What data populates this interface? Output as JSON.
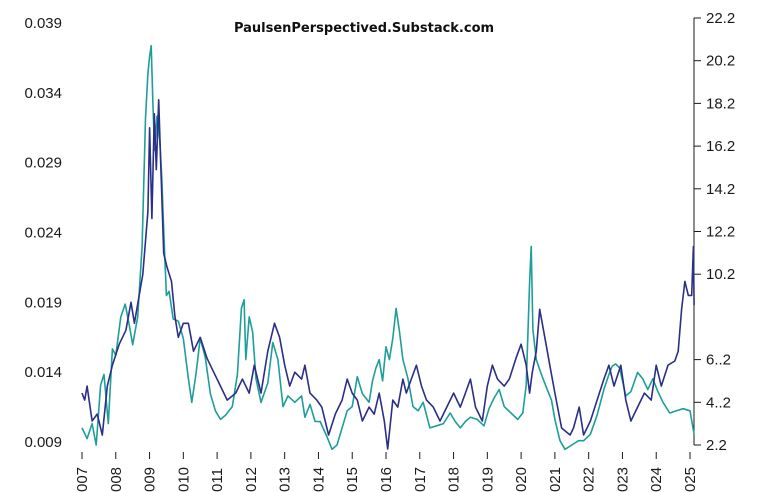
{
  "chart_data": {
    "type": "line",
    "title": "PaulsenPerspectived.Substack.com",
    "y_left": {
      "ticks": [
        0.039,
        0.034,
        0.029,
        0.024,
        0.019,
        0.014,
        0.009
      ],
      "tick_labels": [
        "0.039",
        "0.034",
        "0.029",
        "0.024",
        "0.019",
        "0.014",
        "0.009"
      ],
      "range": [
        0.009,
        0.039
      ]
    },
    "y_right": {
      "ticks": [
        22.2,
        20.2,
        18.2,
        16.2,
        14.2,
        12.2,
        10.2,
        6.2,
        4.2,
        2.2
      ],
      "tick_labels": [
        "22.2",
        "20.2",
        "18.2",
        "16.2",
        "14.2",
        "12.2",
        "10.2",
        "6..2",
        "4..2",
        "2.2"
      ],
      "range": [
        2.2,
        22.2
      ]
    },
    "x": {
      "range": [
        2007,
        2025
      ],
      "ticks": [
        2007,
        2008,
        2009,
        2010,
        2011,
        2012,
        2013,
        2014,
        2015,
        2016,
        2017,
        2018,
        2019,
        2020,
        2021,
        2022,
        2023,
        2024,
        2025
      ],
      "tick_labels": [
        "007",
        "008",
        "009",
        "010",
        "011",
        "012",
        "013",
        "014",
        "015",
        "016",
        "017",
        "018",
        "019",
        "020",
        "021",
        "022",
        "023",
        "024",
        "025"
      ]
    },
    "series": [
      {
        "axis": "left",
        "color": "#2b2f86",
        "points": [
          [
            2007.0,
            0.0125
          ],
          [
            2007.08,
            0.012
          ],
          [
            2007.15,
            0.013
          ],
          [
            2007.3,
            0.0105
          ],
          [
            2007.45,
            0.011
          ],
          [
            2007.6,
            0.0095
          ],
          [
            2007.75,
            0.013
          ],
          [
            2007.9,
            0.0145
          ],
          [
            2008.1,
            0.016
          ],
          [
            2008.3,
            0.017
          ],
          [
            2008.45,
            0.019
          ],
          [
            2008.55,
            0.0175
          ],
          [
            2008.8,
            0.021
          ],
          [
            2008.95,
            0.0255
          ],
          [
            2009.0,
            0.0315
          ],
          [
            2009.07,
            0.025
          ],
          [
            2009.14,
            0.0325
          ],
          [
            2009.2,
            0.0285
          ],
          [
            2009.27,
            0.0335
          ],
          [
            2009.33,
            0.029
          ],
          [
            2009.42,
            0.0225
          ],
          [
            2009.52,
            0.0215
          ],
          [
            2009.65,
            0.0205
          ],
          [
            2009.75,
            0.018
          ],
          [
            2009.85,
            0.0165
          ],
          [
            2010.0,
            0.0175
          ],
          [
            2010.15,
            0.0175
          ],
          [
            2010.3,
            0.0155
          ],
          [
            2010.5,
            0.0165
          ],
          [
            2010.7,
            0.015
          ],
          [
            2010.9,
            0.014
          ],
          [
            2011.1,
            0.013
          ],
          [
            2011.3,
            0.012
          ],
          [
            2011.55,
            0.0125
          ],
          [
            2011.75,
            0.0135
          ],
          [
            2011.95,
            0.0125
          ],
          [
            2012.1,
            0.0145
          ],
          [
            2012.3,
            0.0125
          ],
          [
            2012.5,
            0.0155
          ],
          [
            2012.7,
            0.0175
          ],
          [
            2012.85,
            0.0165
          ],
          [
            2013.0,
            0.0145
          ],
          [
            2013.15,
            0.013
          ],
          [
            2013.3,
            0.014
          ],
          [
            2013.5,
            0.0135
          ],
          [
            2013.6,
            0.0145
          ],
          [
            2013.75,
            0.0125
          ],
          [
            2013.95,
            0.012
          ],
          [
            2014.1,
            0.0115
          ],
          [
            2014.3,
            0.0095
          ],
          [
            2014.5,
            0.011
          ],
          [
            2014.7,
            0.012
          ],
          [
            2014.85,
            0.0135
          ],
          [
            2015.0,
            0.0125
          ],
          [
            2015.15,
            0.012
          ],
          [
            2015.3,
            0.0105
          ],
          [
            2015.5,
            0.0115
          ],
          [
            2015.65,
            0.011
          ],
          [
            2015.8,
            0.0125
          ],
          [
            2015.95,
            0.0105
          ],
          [
            2016.05,
            0.0085
          ],
          [
            2016.2,
            0.012
          ],
          [
            2016.35,
            0.0115
          ],
          [
            2016.5,
            0.0135
          ],
          [
            2016.6,
            0.0125
          ],
          [
            2016.75,
            0.0135
          ],
          [
            2016.9,
            0.0145
          ],
          [
            2017.05,
            0.013
          ],
          [
            2017.2,
            0.012
          ],
          [
            2017.4,
            0.0115
          ],
          [
            2017.6,
            0.0105
          ],
          [
            2017.8,
            0.0115
          ],
          [
            2018.0,
            0.0125
          ],
          [
            2018.2,
            0.0115
          ],
          [
            2018.35,
            0.0125
          ],
          [
            2018.5,
            0.0135
          ],
          [
            2018.65,
            0.0115
          ],
          [
            2018.85,
            0.0105
          ],
          [
            2019.0,
            0.013
          ],
          [
            2019.15,
            0.0145
          ],
          [
            2019.3,
            0.0135
          ],
          [
            2019.5,
            0.013
          ],
          [
            2019.65,
            0.0135
          ],
          [
            2019.85,
            0.015
          ],
          [
            2020.0,
            0.016
          ],
          [
            2020.15,
            0.0145
          ],
          [
            2020.25,
            0.0125
          ],
          [
            2020.33,
            0.014
          ],
          [
            2020.45,
            0.0155
          ],
          [
            2020.55,
            0.0185
          ],
          [
            2020.7,
            0.0165
          ],
          [
            2020.85,
            0.0145
          ],
          [
            2021.0,
            0.0125
          ],
          [
            2021.2,
            0.01
          ],
          [
            2021.45,
            0.0095
          ],
          [
            2021.55,
            0.01
          ],
          [
            2021.72,
            0.0115
          ],
          [
            2021.85,
            0.0095
          ],
          [
            2022.05,
            0.0105
          ],
          [
            2022.25,
            0.012
          ],
          [
            2022.45,
            0.0135
          ],
          [
            2022.6,
            0.0145
          ],
          [
            2022.75,
            0.013
          ],
          [
            2022.95,
            0.0145
          ],
          [
            2023.1,
            0.012
          ],
          [
            2023.25,
            0.0105
          ],
          [
            2023.45,
            0.0115
          ],
          [
            2023.65,
            0.0125
          ],
          [
            2023.85,
            0.012
          ],
          [
            2024.0,
            0.0145
          ],
          [
            2024.15,
            0.013
          ],
          [
            2024.35,
            0.0145
          ],
          [
            2024.55,
            0.0148
          ],
          [
            2024.65,
            0.0155
          ],
          [
            2024.75,
            0.0185
          ],
          [
            2024.85,
            0.0205
          ],
          [
            2024.95,
            0.0195
          ],
          [
            2025.05,
            0.0195
          ],
          [
            2025.1,
            0.023
          ],
          [
            2025.12,
            0.0188
          ]
        ]
      },
      {
        "axis": "right",
        "color": "#1e9e9a",
        "points": [
          [
            2007.0,
            3.0
          ],
          [
            2007.15,
            2.5
          ],
          [
            2007.3,
            3.2
          ],
          [
            2007.42,
            2.2
          ],
          [
            2007.55,
            5.0
          ],
          [
            2007.65,
            5.5
          ],
          [
            2007.78,
            3.2
          ],
          [
            2007.9,
            6.7
          ],
          [
            2008.0,
            6.4
          ],
          [
            2008.15,
            8.2
          ],
          [
            2008.28,
            8.8
          ],
          [
            2008.4,
            7.8
          ],
          [
            2008.5,
            6.9
          ],
          [
            2008.65,
            8.2
          ],
          [
            2008.78,
            11.5
          ],
          [
            2008.88,
            17.5
          ],
          [
            2008.95,
            19.6
          ],
          [
            2009.0,
            20.4
          ],
          [
            2009.05,
            20.9
          ],
          [
            2009.1,
            18.2
          ],
          [
            2009.15,
            16.0
          ],
          [
            2009.22,
            17.6
          ],
          [
            2009.3,
            16.5
          ],
          [
            2009.36,
            14.8
          ],
          [
            2009.43,
            11.8
          ],
          [
            2009.5,
            9.2
          ],
          [
            2009.58,
            9.4
          ],
          [
            2009.7,
            8.1
          ],
          [
            2009.85,
            8.0
          ],
          [
            2010.0,
            7.2
          ],
          [
            2010.15,
            5.3
          ],
          [
            2010.25,
            4.2
          ],
          [
            2010.38,
            5.6
          ],
          [
            2010.5,
            7.2
          ],
          [
            2010.65,
            6.3
          ],
          [
            2010.8,
            4.6
          ],
          [
            2010.95,
            3.8
          ],
          [
            2011.1,
            3.4
          ],
          [
            2011.25,
            3.6
          ],
          [
            2011.45,
            4.0
          ],
          [
            2011.6,
            5.5
          ],
          [
            2011.72,
            8.6
          ],
          [
            2011.8,
            9.0
          ],
          [
            2011.85,
            6.2
          ],
          [
            2011.95,
            8.2
          ],
          [
            2012.05,
            7.5
          ],
          [
            2012.15,
            5.3
          ],
          [
            2012.3,
            4.2
          ],
          [
            2012.5,
            5.1
          ],
          [
            2012.65,
            7.0
          ],
          [
            2012.8,
            6.2
          ],
          [
            2012.95,
            4.0
          ],
          [
            2013.1,
            4.5
          ],
          [
            2013.3,
            4.2
          ],
          [
            2013.5,
            4.5
          ],
          [
            2013.6,
            3.5
          ],
          [
            2013.75,
            4.1
          ],
          [
            2013.9,
            3.3
          ],
          [
            2014.05,
            3.3
          ],
          [
            2014.25,
            2.6
          ],
          [
            2014.4,
            2.0
          ],
          [
            2014.55,
            2.2
          ],
          [
            2014.7,
            3.0
          ],
          [
            2014.85,
            3.8
          ],
          [
            2015.0,
            4.0
          ],
          [
            2015.15,
            5.4
          ],
          [
            2015.3,
            4.6
          ],
          [
            2015.5,
            4.2
          ],
          [
            2015.6,
            5.2
          ],
          [
            2015.7,
            5.8
          ],
          [
            2015.8,
            6.2
          ],
          [
            2015.9,
            5.2
          ],
          [
            2016.0,
            6.8
          ],
          [
            2016.1,
            6.2
          ],
          [
            2016.2,
            7.2
          ],
          [
            2016.3,
            8.6
          ],
          [
            2016.4,
            7.5
          ],
          [
            2016.5,
            6.2
          ],
          [
            2016.65,
            5.3
          ],
          [
            2016.8,
            4.0
          ],
          [
            2016.95,
            3.8
          ],
          [
            2017.1,
            4.2
          ],
          [
            2017.3,
            3.0
          ],
          [
            2017.5,
            3.1
          ],
          [
            2017.7,
            3.2
          ],
          [
            2017.9,
            3.7
          ],
          [
            2018.05,
            3.3
          ],
          [
            2018.2,
            3.0
          ],
          [
            2018.35,
            3.3
          ],
          [
            2018.5,
            3.5
          ],
          [
            2018.7,
            3.4
          ],
          [
            2018.9,
            3.1
          ],
          [
            2019.05,
            3.9
          ],
          [
            2019.2,
            4.4
          ],
          [
            2019.35,
            4.8
          ],
          [
            2019.5,
            4.0
          ],
          [
            2019.7,
            3.7
          ],
          [
            2019.9,
            3.4
          ],
          [
            2020.05,
            3.7
          ],
          [
            2020.15,
            5.0
          ],
          [
            2020.25,
            9.8
          ],
          [
            2020.3,
            11.5
          ],
          [
            2020.35,
            7.6
          ],
          [
            2020.45,
            6.2
          ],
          [
            2020.6,
            5.5
          ],
          [
            2020.75,
            4.9
          ],
          [
            2020.9,
            4.3
          ],
          [
            2021.0,
            3.4
          ],
          [
            2021.15,
            2.4
          ],
          [
            2021.3,
            2.0
          ],
          [
            2021.5,
            2.2
          ],
          [
            2021.7,
            2.4
          ],
          [
            2021.85,
            2.4
          ],
          [
            2022.05,
            2.7
          ],
          [
            2022.25,
            3.6
          ],
          [
            2022.45,
            4.8
          ],
          [
            2022.6,
            5.5
          ],
          [
            2022.7,
            5.9
          ],
          [
            2022.8,
            6.0
          ],
          [
            2022.92,
            5.8
          ],
          [
            2023.1,
            4.5
          ],
          [
            2023.25,
            4.7
          ],
          [
            2023.45,
            5.6
          ],
          [
            2023.6,
            5.3
          ],
          [
            2023.75,
            4.8
          ],
          [
            2023.9,
            5.3
          ],
          [
            2024.05,
            4.7
          ],
          [
            2024.2,
            4.2
          ],
          [
            2024.4,
            3.7
          ],
          [
            2024.6,
            3.8
          ],
          [
            2024.8,
            3.9
          ],
          [
            2025.0,
            3.8
          ],
          [
            2025.12,
            2.7
          ]
        ]
      }
    ]
  }
}
